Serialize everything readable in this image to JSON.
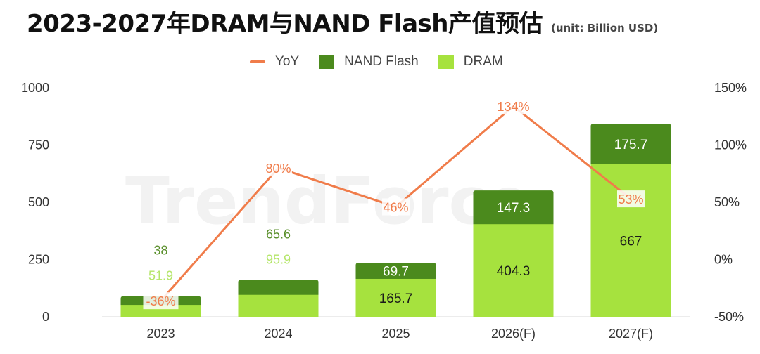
{
  "header": {
    "title": "2023-2027年DRAM与NAND Flash产值预估",
    "unit": "(unit: Billion USD)"
  },
  "watermark": "TrendForce",
  "colors": {
    "dram": "#a6e23e",
    "nand": "#4b8a1d",
    "yoy": "#f07c4a",
    "dram_label": "#b5e66a",
    "nand_label": "#5a8f2b",
    "axis_text": "#333333",
    "grid": "#e6e6e6"
  },
  "legend": [
    {
      "label": "YoY",
      "kind": "line",
      "color": "#f07c4a"
    },
    {
      "label": "NAND Flash",
      "kind": "box",
      "color": "#4b8a1d"
    },
    {
      "label": "DRAM",
      "kind": "box",
      "color": "#a6e23e"
    }
  ],
  "chart_data": {
    "type": "bar",
    "stacked": true,
    "categories": [
      "2023",
      "2024",
      "2025",
      "2026(F)",
      "2027(F)"
    ],
    "series": [
      {
        "name": "DRAM",
        "values": [
          51.9,
          95.9,
          165.7,
          404.3,
          667
        ],
        "labels": [
          "51.9",
          "95.9",
          "165.7",
          "404.3",
          "667"
        ]
      },
      {
        "name": "NAND Flash",
        "values": [
          38,
          65.6,
          69.7,
          147.3,
          175.7
        ],
        "labels": [
          "38",
          "65.6",
          "69.7",
          "147.3",
          "175.7"
        ]
      }
    ],
    "line_series": {
      "name": "YoY",
      "values": [
        -36,
        80,
        46,
        134,
        53
      ],
      "labels": [
        "-36%",
        "80%",
        "46%",
        "134%",
        "53%"
      ],
      "axis": "right"
    },
    "ylim": [
      0,
      1000
    ],
    "yticks": [
      "0",
      "250",
      "500",
      "750",
      "1000"
    ],
    "y2lim": [
      -50,
      150
    ],
    "y2ticks": [
      "-50%",
      "0%",
      "50%",
      "100%",
      "150%"
    ],
    "grid": false,
    "legend_position": "top-center"
  }
}
